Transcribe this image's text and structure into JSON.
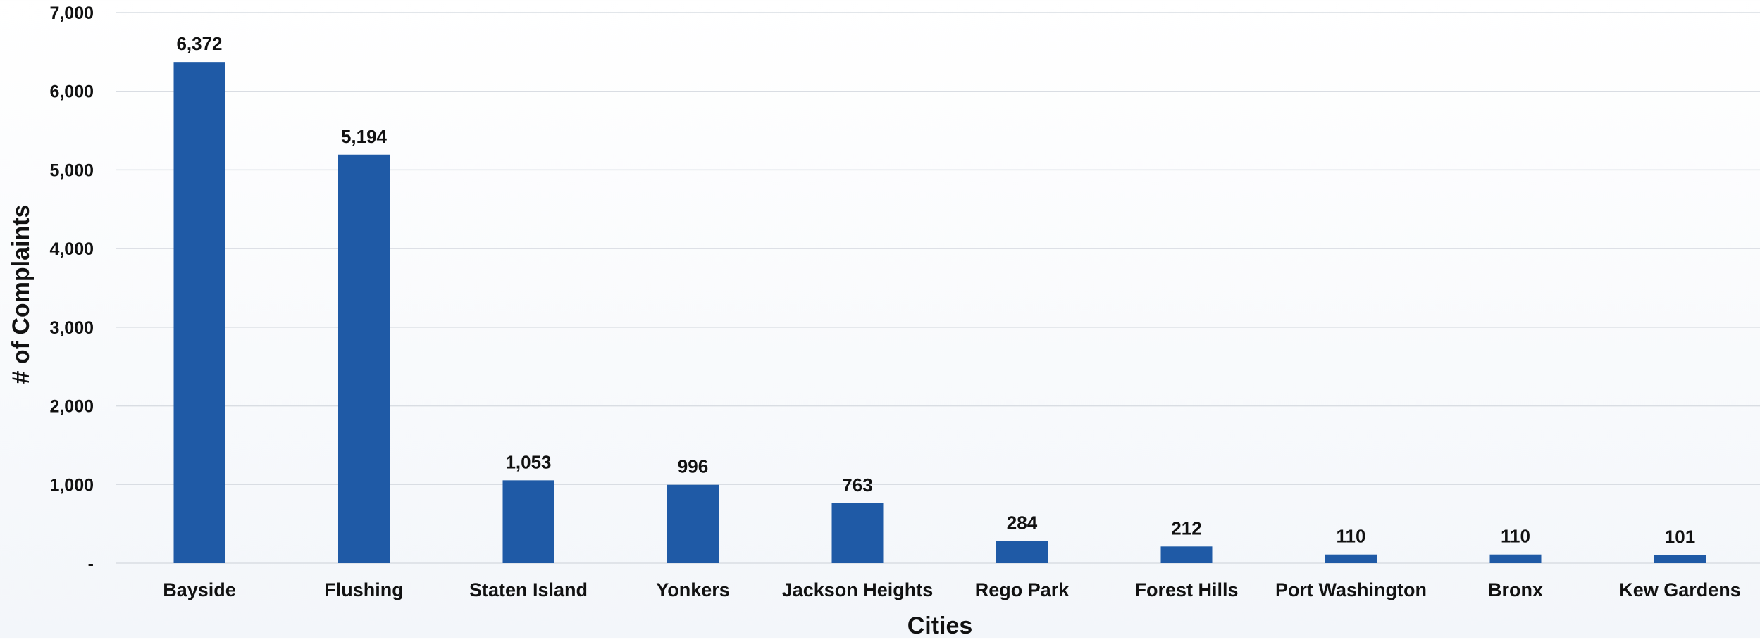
{
  "chart_data": {
    "type": "bar",
    "categories": [
      "Bayside",
      "Flushing",
      "Staten Island",
      "Yonkers",
      "Jackson Heights",
      "Rego Park",
      "Forest Hills",
      "Port Washington",
      "Bronx",
      "Kew Gardens"
    ],
    "values": [
      6372,
      5194,
      1053,
      996,
      763,
      284,
      212,
      110,
      110,
      101
    ],
    "data_labels": [
      "6,372",
      "5,194",
      "1,053",
      "996",
      "763",
      "284",
      "212",
      "110",
      "110",
      "101"
    ],
    "xlabel": "Cities",
    "ylabel": "# of Complaints",
    "ylim": [
      0,
      7000
    ],
    "yticks": [
      0,
      1000,
      2000,
      3000,
      4000,
      5000,
      6000,
      7000
    ],
    "ytick_labels": [
      "-",
      "1,000",
      "2,000",
      "3,000",
      "4,000",
      "5,000",
      "6,000",
      "7,000"
    ],
    "grid": "horizontal",
    "bar_color": "#1f5aa6",
    "grid_color": "#d9dde3",
    "legend": "none"
  }
}
